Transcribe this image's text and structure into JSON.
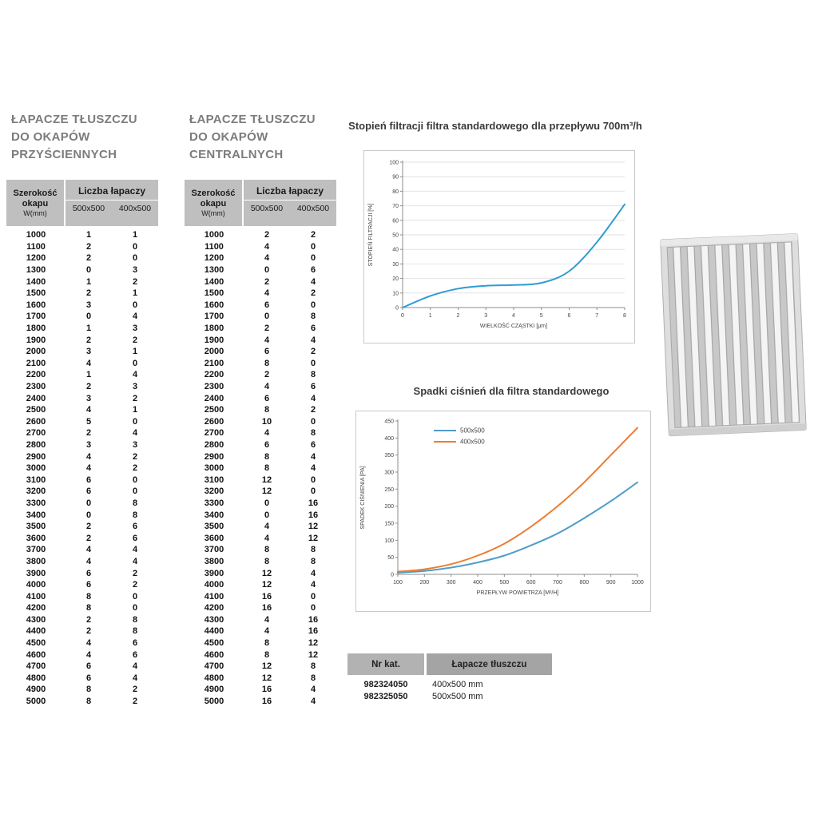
{
  "colors": {
    "title_gray": "#7c7c7c",
    "table_header_bg": "#bfbfbf",
    "catalog_header_left_bg": "#b2b2b2",
    "catalog_header_right_bg": "#a4a4a4",
    "chart1_line": "#2f9cd4",
    "chart2_blue": "#4f9dc8",
    "chart2_orange": "#ed7d31"
  },
  "tables": [
    {
      "title_lines": [
        "ŁAPACZE TŁUSZCZU",
        "DO OKAPÓW",
        "PRZYŚCIENNYCH"
      ],
      "header": {
        "width_label_lines": [
          "Szerokość",
          "okapu",
          "W(mm)"
        ],
        "group_label": "Liczba łapaczy",
        "subcols": [
          "500x500",
          "400x500"
        ]
      },
      "rows": [
        [
          1000,
          1,
          1
        ],
        [
          1100,
          2,
          0
        ],
        [
          1200,
          2,
          0
        ],
        [
          1300,
          0,
          3
        ],
        [
          1400,
          1,
          2
        ],
        [
          1500,
          2,
          1
        ],
        [
          1600,
          3,
          0
        ],
        [
          1700,
          0,
          4
        ],
        [
          1800,
          1,
          3
        ],
        [
          1900,
          2,
          2
        ],
        [
          2000,
          3,
          1
        ],
        [
          2100,
          4,
          0
        ],
        [
          2200,
          1,
          4
        ],
        [
          2300,
          2,
          3
        ],
        [
          2400,
          3,
          2
        ],
        [
          2500,
          4,
          1
        ],
        [
          2600,
          5,
          0
        ],
        [
          2700,
          2,
          4
        ],
        [
          2800,
          3,
          3
        ],
        [
          2900,
          4,
          2
        ],
        [
          3000,
          4,
          2
        ],
        [
          3100,
          6,
          0
        ],
        [
          3200,
          6,
          0
        ],
        [
          3300,
          0,
          8
        ],
        [
          3400,
          0,
          8
        ],
        [
          3500,
          2,
          6
        ],
        [
          3600,
          2,
          6
        ],
        [
          3700,
          4,
          4
        ],
        [
          3800,
          4,
          4
        ],
        [
          3900,
          6,
          2
        ],
        [
          4000,
          6,
          2
        ],
        [
          4100,
          8,
          0
        ],
        [
          4200,
          8,
          0
        ],
        [
          4300,
          2,
          8
        ],
        [
          4400,
          2,
          8
        ],
        [
          4500,
          4,
          6
        ],
        [
          4600,
          4,
          6
        ],
        [
          4700,
          6,
          4
        ],
        [
          4800,
          6,
          4
        ],
        [
          4900,
          8,
          2
        ],
        [
          5000,
          8,
          2
        ]
      ]
    },
    {
      "title_lines": [
        "ŁAPACZE TŁUSZCZU",
        "DO OKAPÓW",
        "CENTRALNYCH"
      ],
      "header": {
        "width_label_lines": [
          "Szerokość",
          "okapu",
          "W(mm)"
        ],
        "group_label": "Liczba łapaczy",
        "subcols": [
          "500x500",
          "400x500"
        ]
      },
      "rows": [
        [
          1000,
          2,
          2
        ],
        [
          1100,
          4,
          0
        ],
        [
          1200,
          4,
          0
        ],
        [
          1300,
          0,
          6
        ],
        [
          1400,
          2,
          4
        ],
        [
          1500,
          4,
          2
        ],
        [
          1600,
          6,
          0
        ],
        [
          1700,
          0,
          8
        ],
        [
          1800,
          2,
          6
        ],
        [
          1900,
          4,
          4
        ],
        [
          2000,
          6,
          2
        ],
        [
          2100,
          8,
          0
        ],
        [
          2200,
          2,
          8
        ],
        [
          2300,
          4,
          6
        ],
        [
          2400,
          6,
          4
        ],
        [
          2500,
          8,
          2
        ],
        [
          2600,
          10,
          0
        ],
        [
          2700,
          4,
          8
        ],
        [
          2800,
          6,
          6
        ],
        [
          2900,
          8,
          4
        ],
        [
          3000,
          8,
          4
        ],
        [
          3100,
          12,
          0
        ],
        [
          3200,
          12,
          0
        ],
        [
          3300,
          0,
          16
        ],
        [
          3400,
          0,
          16
        ],
        [
          3500,
          4,
          12
        ],
        [
          3600,
          4,
          12
        ],
        [
          3700,
          8,
          8
        ],
        [
          3800,
          8,
          8
        ],
        [
          3900,
          12,
          4
        ],
        [
          4000,
          12,
          4
        ],
        [
          4100,
          16,
          0
        ],
        [
          4200,
          16,
          0
        ],
        [
          4300,
          4,
          16
        ],
        [
          4400,
          4,
          16
        ],
        [
          4500,
          8,
          12
        ],
        [
          4600,
          8,
          12
        ],
        [
          4700,
          12,
          8
        ],
        [
          4800,
          12,
          8
        ],
        [
          4900,
          16,
          4
        ],
        [
          5000,
          16,
          4
        ]
      ]
    }
  ],
  "chart_data": [
    {
      "type": "line",
      "title": "Stopień filtracji filtra standardowego dla przepływu 700m³/h",
      "xlabel": "WIELKOŚĆ CZĄSTKI [μm]",
      "ylabel": "STOPIEŃ FILTRACJI [%]",
      "xlim": [
        0,
        8
      ],
      "ylim": [
        0,
        100
      ],
      "x_ticks": [
        0,
        1,
        2,
        3,
        4,
        5,
        6,
        7,
        8
      ],
      "y_ticks": [
        0,
        10,
        20,
        30,
        40,
        50,
        60,
        70,
        80,
        90,
        100
      ],
      "grid": "horizontal",
      "legend": false,
      "series": [
        {
          "name": "stopień filtracji",
          "color": "#2f9cd4",
          "x": [
            0,
            1,
            2,
            3,
            4,
            5,
            6,
            7,
            8
          ],
          "y": [
            0,
            8,
            13,
            15,
            15.5,
            17,
            25,
            45,
            71
          ]
        }
      ]
    },
    {
      "type": "line",
      "title": "Spadki ciśnień dla filtra standardowego",
      "xlabel": "PRZEPŁYW POWIETRZA [M³/H]",
      "ylabel": "SPADEK CIŚNIENIA [PA]",
      "xlim": [
        100,
        1000
      ],
      "ylim": [
        0,
        450
      ],
      "x_ticks": [
        100,
        200,
        300,
        400,
        500,
        600,
        700,
        800,
        900,
        1000
      ],
      "y_ticks": [
        0,
        50,
        100,
        150,
        200,
        250,
        300,
        350,
        400,
        450
      ],
      "grid": "none",
      "legend": true,
      "series": [
        {
          "name": "500x500",
          "color": "#4f9dc8",
          "x": [
            100,
            200,
            300,
            400,
            500,
            600,
            700,
            800,
            900,
            1000
          ],
          "y": [
            5,
            10,
            20,
            35,
            55,
            85,
            120,
            165,
            215,
            270
          ]
        },
        {
          "name": "400x500",
          "color": "#ed7d31",
          "x": [
            100,
            200,
            300,
            400,
            500,
            600,
            700,
            800,
            900,
            1000
          ],
          "y": [
            8,
            15,
            30,
            55,
            90,
            140,
            200,
            270,
            350,
            430
          ]
        }
      ]
    }
  ],
  "catalog_table": {
    "headers": [
      "Nr kat.",
      "Łapacze tłuszczu"
    ],
    "rows": [
      {
        "nr": "982324050",
        "size": "400x500 mm"
      },
      {
        "nr": "982325050",
        "size": "500x500 mm"
      }
    ]
  }
}
